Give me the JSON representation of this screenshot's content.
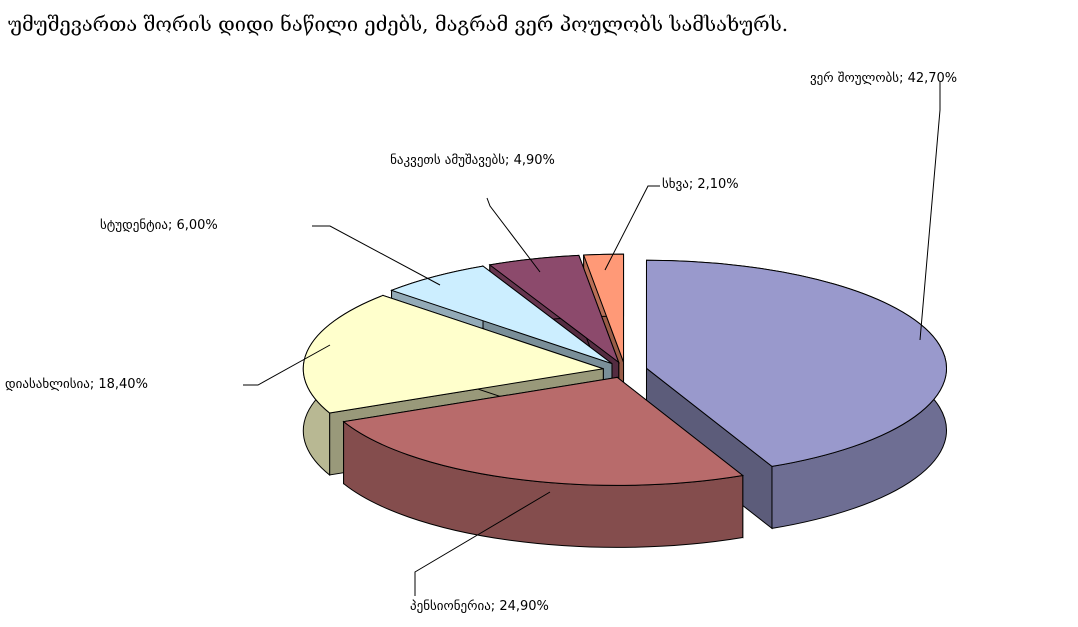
{
  "chart_data": {
    "type": "pie",
    "title": "უმუშევართა შორის დიდი ნაწილი ეძებს, მაგრამ ვერ პოულობს სამსახურს.",
    "values": [
      42.7,
      24.9,
      18.4,
      6.0,
      4.9,
      2.1
    ],
    "value_labels": [
      "ვერ შოულობს; 42,70%",
      "პენსიონერია; 24,90%",
      "დიასახლისია; 18,40%",
      "სტუდენტია; 6,00%",
      "ნაკვეთს ამუშავებს; 4,90%",
      "სხვა; 2,10%"
    ],
    "colors": [
      "#9999cc",
      "#b86b6b",
      "#ffffcc",
      "#cceeff",
      "#8c4a6c",
      "#ff9977"
    ]
  }
}
